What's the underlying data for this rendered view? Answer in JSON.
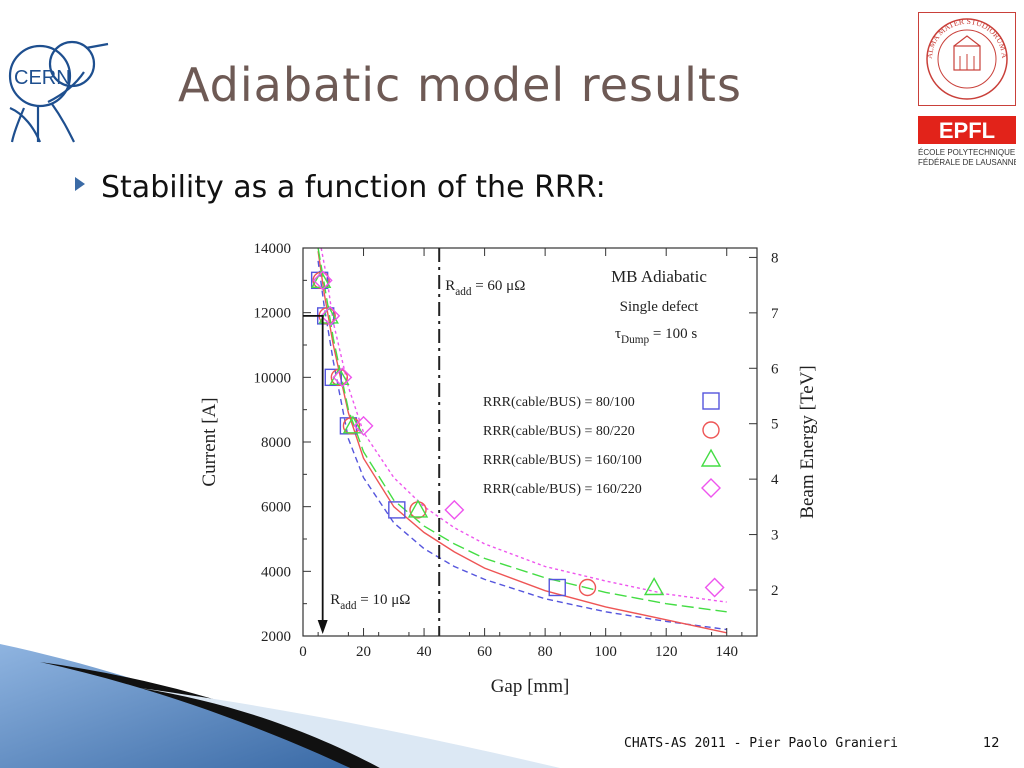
{
  "slide": {
    "title": "Adiabatic model results",
    "bullet": "Stability as a function of the RRR:",
    "footer": "CHATS-AS 2011 - Pier Paolo Granieri",
    "page_number": "12"
  },
  "logos": {
    "cern": "CERN",
    "unibo": "ALMA MATER STUDIORUM A.D. 1088",
    "epfl": "EPFL",
    "epfl_sub_1": "ÉCOLE POLYTECHNIQUE",
    "epfl_sub_2": "FÉDÉRALE DE LAUSANNE"
  },
  "colors": {
    "title": "#6e5a55",
    "bullet_arrow": "#3b6ba6",
    "series_80_100": "#5555dd",
    "series_80_220": "#ee5555",
    "series_160_100": "#44dd44",
    "series_160_220": "#ee55ee"
  },
  "chart_data": {
    "type": "scatter",
    "xlabel": "Gap [mm]",
    "ylabel": "Current [A]",
    "y2label": "Beam Energy [TeV]",
    "xlim": [
      0,
      150
    ],
    "ylim": [
      2000,
      14000
    ],
    "y2lim": [
      1.17,
      8.17
    ],
    "xticks": [
      0,
      20,
      40,
      60,
      80,
      100,
      120,
      140
    ],
    "yticks": [
      2000,
      4000,
      6000,
      8000,
      10000,
      12000,
      14000
    ],
    "y2ticks": [
      2,
      3,
      4,
      5,
      6,
      7,
      8
    ],
    "grid": false,
    "legend_position": "right",
    "annotations": {
      "title": "MB Adiabatic",
      "subtitle": "Single defect",
      "tau_main": "τ",
      "tau_sub": "Dump",
      "tau_rest": " = 100 s",
      "r60_main": "R",
      "r60_sub": "add",
      "r60_rest": " = 60 μΩ",
      "r10_main": "R",
      "r10_sub": "add",
      "r10_rest": " = 10 μΩ"
    },
    "vline_gap": 45,
    "arrow_current": 11900,
    "series": [
      {
        "name": "RRR(cable/BUS) = 80/100",
        "marker": "square",
        "x": [
          5.5,
          7.5,
          10,
          15,
          31,
          84
        ],
        "y": [
          13000,
          11900,
          10000,
          8500,
          5900,
          3500
        ],
        "curve_x": [
          5,
          7,
          10,
          15,
          20,
          30,
          40,
          50,
          60,
          80,
          100,
          120,
          140
        ],
        "curve_y": [
          13600,
          12200,
          10500,
          8100,
          6900,
          5500,
          4700,
          4150,
          3750,
          3150,
          2750,
          2450,
          2200
        ]
      },
      {
        "name": "RRR(cable/BUS) = 80/220",
        "marker": "circle",
        "x": [
          6,
          8,
          12,
          16,
          38,
          94
        ],
        "y": [
          13000,
          11900,
          10000,
          8500,
          5900,
          3500
        ],
        "curve_x": [
          5,
          7,
          10,
          15,
          20,
          30,
          40,
          50,
          60,
          80,
          100,
          120,
          140
        ],
        "curve_y": [
          13900,
          12600,
          11000,
          8900,
          7500,
          6000,
          5200,
          4600,
          4100,
          3400,
          2900,
          2500,
          2100
        ]
      },
      {
        "name": "RRR(cable/BUS) = 160/100",
        "marker": "triangle",
        "x": [
          6,
          8.5,
          12,
          16.5,
          38,
          116
        ],
        "y": [
          13000,
          11900,
          10000,
          8500,
          5900,
          3500
        ],
        "curve_x": [
          5,
          7,
          10,
          15,
          20,
          30,
          40,
          50,
          60,
          80,
          100,
          120,
          140
        ],
        "curve_y": [
          14000,
          12900,
          11200,
          9000,
          7700,
          6200,
          5400,
          4850,
          4400,
          3800,
          3350,
          3000,
          2750
        ]
      },
      {
        "name": "RRR(cable/BUS) = 160/220",
        "marker": "diamond",
        "x": [
          6.5,
          9,
          13,
          20,
          50,
          136
        ],
        "y": [
          13000,
          11900,
          10000,
          8500,
          5900,
          3500
        ],
        "curve_x": [
          6,
          8,
          10,
          15,
          20,
          30,
          40,
          50,
          60,
          80,
          100,
          120,
          140
        ],
        "curve_y": [
          14000,
          13000,
          11700,
          9700,
          8300,
          6900,
          6000,
          5350,
          4850,
          4150,
          3700,
          3300,
          3050
        ]
      }
    ]
  }
}
